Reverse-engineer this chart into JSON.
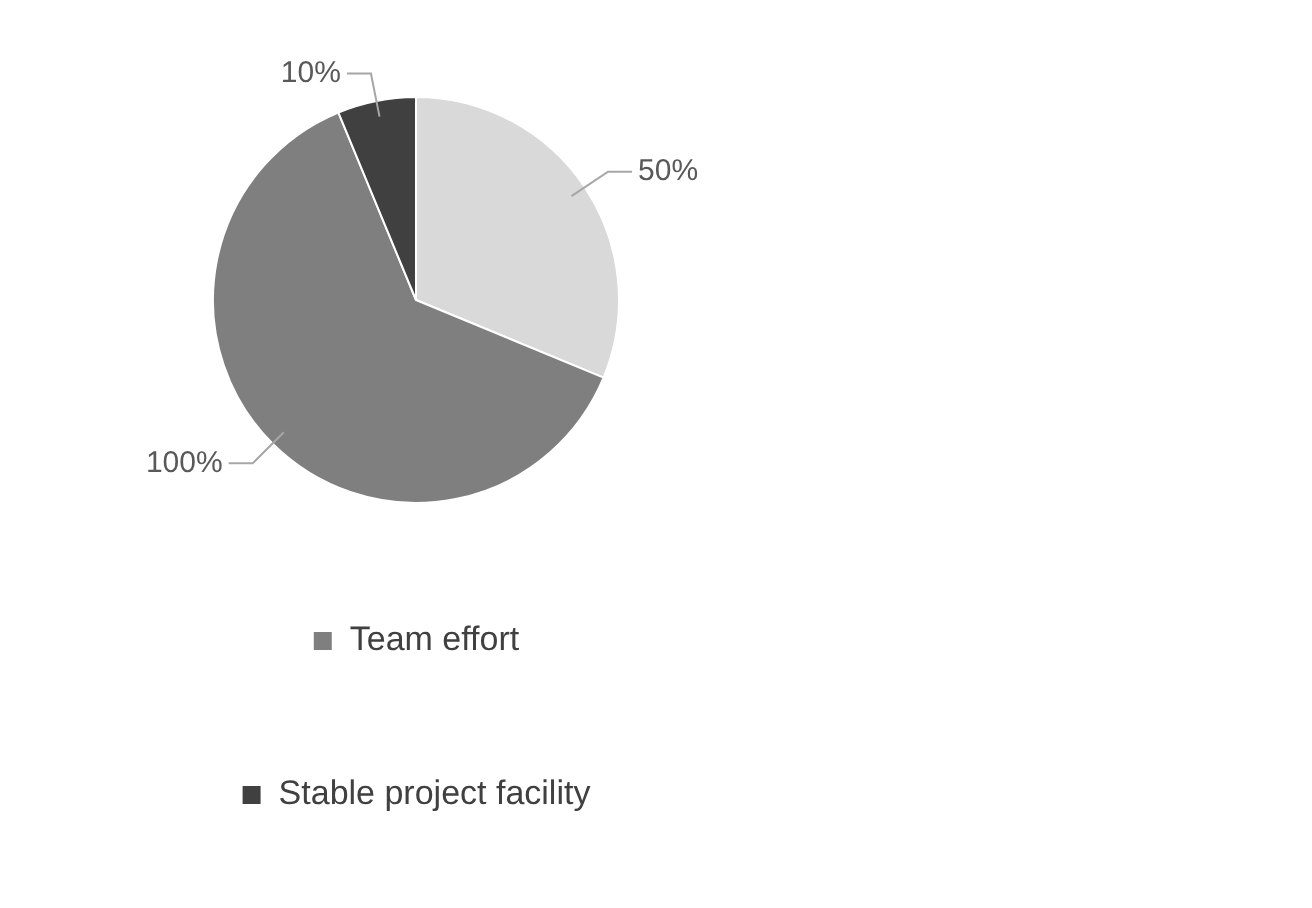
{
  "chart_data": {
    "type": "pie",
    "categories": [
      null,
      "Team effort",
      "Stable project facility"
    ],
    "values": [
      50,
      100,
      10
    ],
    "colors": [
      "#d9d9d9",
      "#7f7f7f",
      "#404040"
    ],
    "value_labels": [
      "50%",
      "100%",
      "10%"
    ],
    "legend": "bottom"
  }
}
